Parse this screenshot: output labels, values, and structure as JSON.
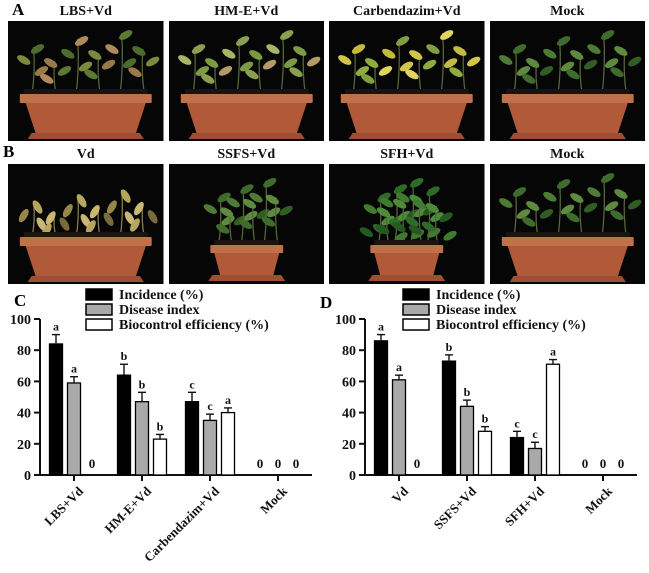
{
  "panels": {
    "A": {
      "letter": "A",
      "photos": [
        {
          "label": "LBS+Vd",
          "condition": "diseased-mixed",
          "pot": "long"
        },
        {
          "label": "HM-E+Vd",
          "condition": "diseased-pale",
          "pot": "long"
        },
        {
          "label": "Carbendazim+Vd",
          "condition": "yellowing",
          "pot": "long"
        },
        {
          "label": "Mock",
          "condition": "healthy",
          "pot": "long"
        }
      ]
    },
    "B": {
      "letter": "B",
      "photos": [
        {
          "label": "Vd",
          "condition": "wilted",
          "pot": "long"
        },
        {
          "label": "SSFS+Vd",
          "condition": "healthy",
          "pot": "square"
        },
        {
          "label": "SFH+Vd",
          "condition": "healthy-dense",
          "pot": "square"
        },
        {
          "label": "Mock",
          "condition": "healthy",
          "pot": "long"
        }
      ]
    },
    "C": {
      "letter": "C"
    },
    "D": {
      "letter": "D"
    }
  },
  "chart_data": [
    {
      "type": "bar",
      "panel": "C",
      "title": "",
      "xlabel": "",
      "ylabel": "",
      "ylim": [
        0,
        100
      ],
      "yticks": [
        0,
        20,
        40,
        60,
        80,
        100
      ],
      "grid": false,
      "legend_position": "top-inside",
      "zero_label": "0",
      "categories": [
        "LBS+Vd",
        "HM-E+Vd",
        "Carbendazim+Vd",
        "Mock"
      ],
      "series": [
        {
          "name": "Incidence (%)",
          "color": "#000000",
          "values": [
            84,
            64,
            47,
            0
          ],
          "errors": [
            6,
            7,
            6,
            0
          ],
          "sig_letters": [
            "a",
            "b",
            "c",
            "0"
          ]
        },
        {
          "name": "Disease index",
          "color": "#a9a9a9",
          "values": [
            59,
            47,
            35,
            0
          ],
          "errors": [
            4,
            6,
            4,
            0
          ],
          "sig_letters": [
            "a",
            "b",
            "c",
            "0"
          ]
        },
        {
          "name": "Biocontrol efficiency (%)",
          "color": "#ffffff",
          "values": [
            0,
            23,
            40,
            0
          ],
          "errors": [
            0,
            3,
            3,
            0
          ],
          "sig_letters": [
            "0",
            "b",
            "a",
            "0"
          ]
        }
      ]
    },
    {
      "type": "bar",
      "panel": "D",
      "title": "",
      "xlabel": "",
      "ylabel": "",
      "ylim": [
        0,
        100
      ],
      "yticks": [
        0,
        20,
        40,
        60,
        80,
        100
      ],
      "grid": false,
      "legend_position": "top-inside",
      "zero_label": "0",
      "categories": [
        "Vd",
        "SSFS+Vd",
        "SFH+Vd",
        "Mock"
      ],
      "series": [
        {
          "name": "Incidence (%)",
          "color": "#000000",
          "values": [
            86,
            73,
            24,
            0
          ],
          "errors": [
            4,
            4,
            4,
            0
          ],
          "sig_letters": [
            "a",
            "b",
            "c",
            "0"
          ]
        },
        {
          "name": "Disease index",
          "color": "#a9a9a9",
          "values": [
            61,
            44,
            17,
            0
          ],
          "errors": [
            3,
            4,
            4,
            0
          ],
          "sig_letters": [
            "a",
            "b",
            "c",
            "0"
          ]
        },
        {
          "name": "Biocontrol efficiency (%)",
          "color": "#ffffff",
          "values": [
            0,
            28,
            71,
            0
          ],
          "errors": [
            0,
            3,
            3,
            0
          ],
          "sig_letters": [
            "0",
            "b",
            "a",
            "0"
          ]
        }
      ]
    }
  ],
  "colors": {
    "pot_rim": "#c0714a",
    "pot_body": "#b05a39",
    "pot_saucer": "#9e4f33",
    "soil": "#1b130c",
    "photo_background": "#060606",
    "bar_black": "#000000",
    "bar_gray": "#a9a9a9",
    "bar_white": "#ffffff"
  }
}
